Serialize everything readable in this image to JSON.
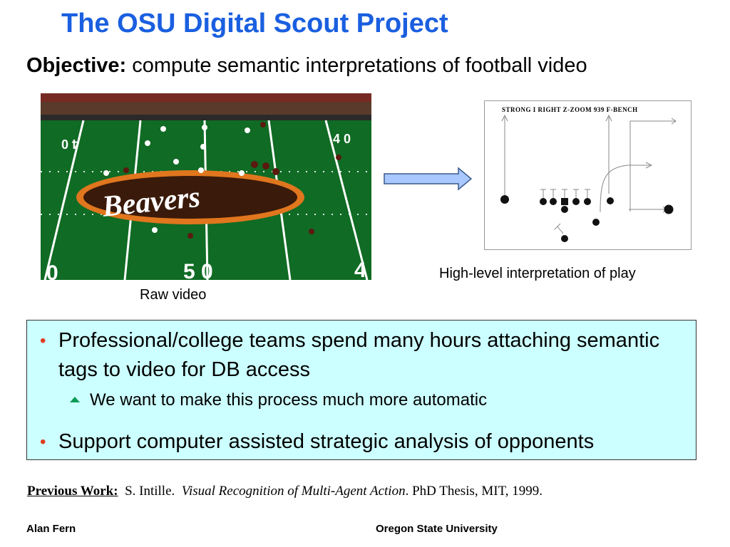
{
  "slide": {
    "title": "The OSU Digital Scout Project",
    "objective_label": "Objective:",
    "objective_text": " compute semantic interpretations of football video"
  },
  "video": {
    "caption": "Raw video",
    "field_numbers": [
      "4 0",
      "4 0",
      "5 0",
      "0",
      "4"
    ],
    "end_zone_word": "Beavers"
  },
  "play_diagram": {
    "caption": "High-level interpretation of play",
    "play_call": "STRONG I RIGHT Z-ZOOM 939 F-BENCH"
  },
  "bullets": {
    "items": [
      {
        "text": "Professional/college teams spend many hours attaching semantic tags to video for DB access"
      },
      {
        "text": "We want to make this process much more automatic"
      },
      {
        "text": "Support computer assisted strategic analysis of opponents"
      }
    ]
  },
  "reference": {
    "label": "Previous Work:",
    "author": "S. Intille.",
    "work_title": "Visual Recognition of Multi-Agent Action",
    "details": ".  PhD Thesis, MIT, 1999."
  },
  "footer": {
    "left": "Alan Fern",
    "right": "Oregon State University"
  },
  "colors": {
    "title": "#1a5fe0",
    "bullet_box": "#ccffff",
    "bullet_dot": "#e03a1e",
    "sub_bullet": "#0b9a55",
    "field_green": "#106b24"
  }
}
